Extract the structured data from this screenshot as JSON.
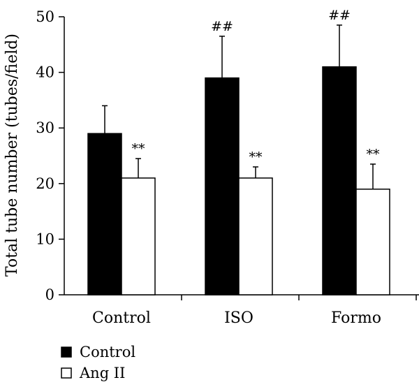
{
  "chart_data": {
    "type": "bar",
    "title": "",
    "xlabel": "",
    "ylabel": "Total tube number (tubes/field)",
    "ylim": [
      0,
      50
    ],
    "yticks": [
      0,
      10,
      20,
      30,
      40,
      50
    ],
    "categories": [
      "Control",
      "ISO",
      "Formo"
    ],
    "series": [
      {
        "name": "Control",
        "color": "#000000",
        "values": [
          29,
          39,
          41
        ],
        "errors": [
          5,
          7.5,
          7.5
        ],
        "annotations": [
          "",
          "##",
          "##"
        ]
      },
      {
        "name": "Ang II",
        "color": "#ffffff",
        "values": [
          21,
          21,
          19
        ],
        "errors": [
          3.5,
          2,
          4.5
        ],
        "annotations": [
          "**",
          "**",
          "**"
        ]
      }
    ],
    "grid": false,
    "legend_position": "bottom-left"
  }
}
